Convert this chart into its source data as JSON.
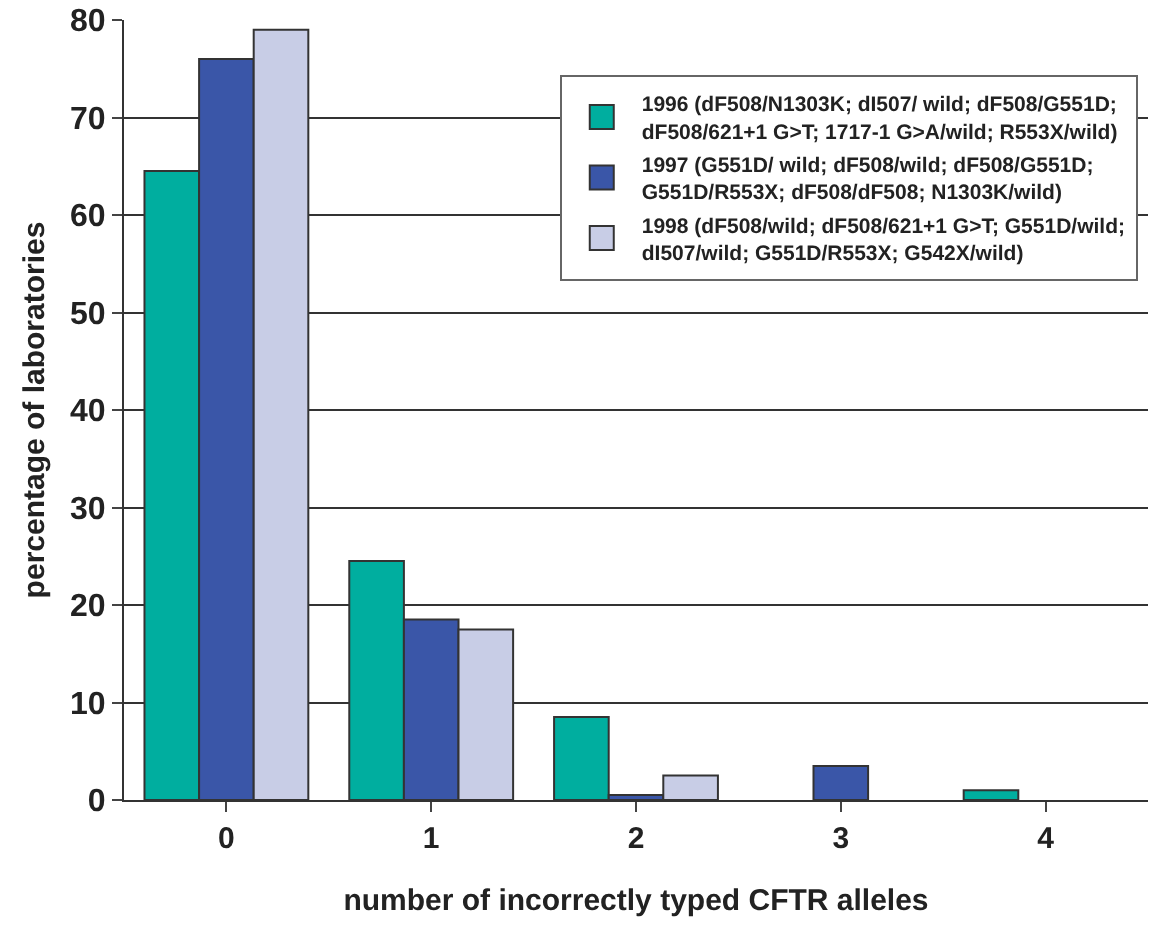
{
  "chart_data": {
    "type": "bar",
    "xlabel": "number of incorrectly typed CFTR alleles",
    "ylabel": "percentage of laboratories",
    "categories": [
      "0",
      "1",
      "2",
      "3",
      "4"
    ],
    "series": [
      {
        "name": "1996 (dF508/N1303K; dI507/ wild; dF508/G551D;\ndF508/621+1 G>T; 1717-1 G>A/wild; R553X/wild)",
        "color": "#00ae9f",
        "values": [
          64.5,
          24.5,
          8.5,
          0,
          1
        ]
      },
      {
        "name": "1997 (G551D/ wild; dF508/wild; dF508/G551D;\nG551D/R553X; dF508/dF508; N1303K/wild)",
        "color": "#3a56a8",
        "values": [
          76,
          18.5,
          0.5,
          3.5,
          0
        ]
      },
      {
        "name": "1998 (dF508/wild; dF508/621+1 G>T; G551D/wild;\ndI507/wild; G551D/R553X; G542X/wild)",
        "color": "#c8cde6",
        "values": [
          79,
          17.5,
          2.5,
          0,
          0
        ]
      }
    ],
    "ylim": [
      0,
      80
    ],
    "yticks": [
      0,
      10,
      20,
      30,
      40,
      50,
      60,
      70,
      80
    ],
    "grid": "y",
    "legend": "top right"
  }
}
